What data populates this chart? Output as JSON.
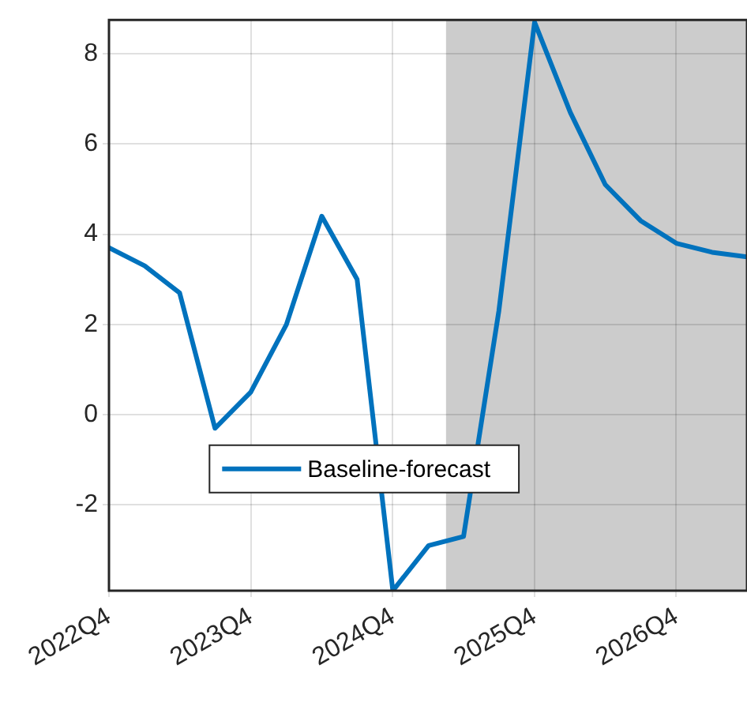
{
  "chart_data": {
    "type": "line",
    "x": [
      "2022-10",
      "2023-01",
      "2023-04",
      "2023-07",
      "2023-10",
      "2024-01",
      "2024-04",
      "2024-07",
      "2024-10",
      "2025-01",
      "2025-04",
      "2025-07",
      "2025-10",
      "2026-01",
      "2026-04",
      "2026-07",
      "2026-10",
      "2027-01",
      "2027-04"
    ],
    "series": [
      {
        "name": "Baseline-forecast",
        "color": "#0072bd",
        "values": [
          3.7,
          3.3,
          2.7,
          -0.3,
          0.5,
          2.0,
          4.4,
          3.0,
          -3.9,
          -2.9,
          -2.7,
          2.3,
          8.7,
          6.7,
          5.1,
          4.3,
          3.8,
          3.6,
          3.5
        ]
      }
    ],
    "xlim": [
      "2022-10",
      "2027-04"
    ],
    "xticks": [
      {
        "value": "2022-10",
        "label": "2022Q4"
      },
      {
        "value": "2023-10",
        "label": "2023Q4"
      },
      {
        "value": "2024-10",
        "label": "2024Q4"
      },
      {
        "value": "2025-10",
        "label": "2025Q4"
      },
      {
        "value": "2026-10",
        "label": "2026Q4"
      }
    ],
    "ylim": [
      -3.9,
      8.75
    ],
    "yticks": [
      -2,
      0,
      2,
      4,
      6,
      8
    ],
    "bands": [
      {
        "axis": "x",
        "from": "2025-02-15",
        "to": "2027-04",
        "color": "#cccccc"
      }
    ],
    "grid": true,
    "legend": "bottom",
    "marker": "none",
    "line_style": "solid"
  }
}
